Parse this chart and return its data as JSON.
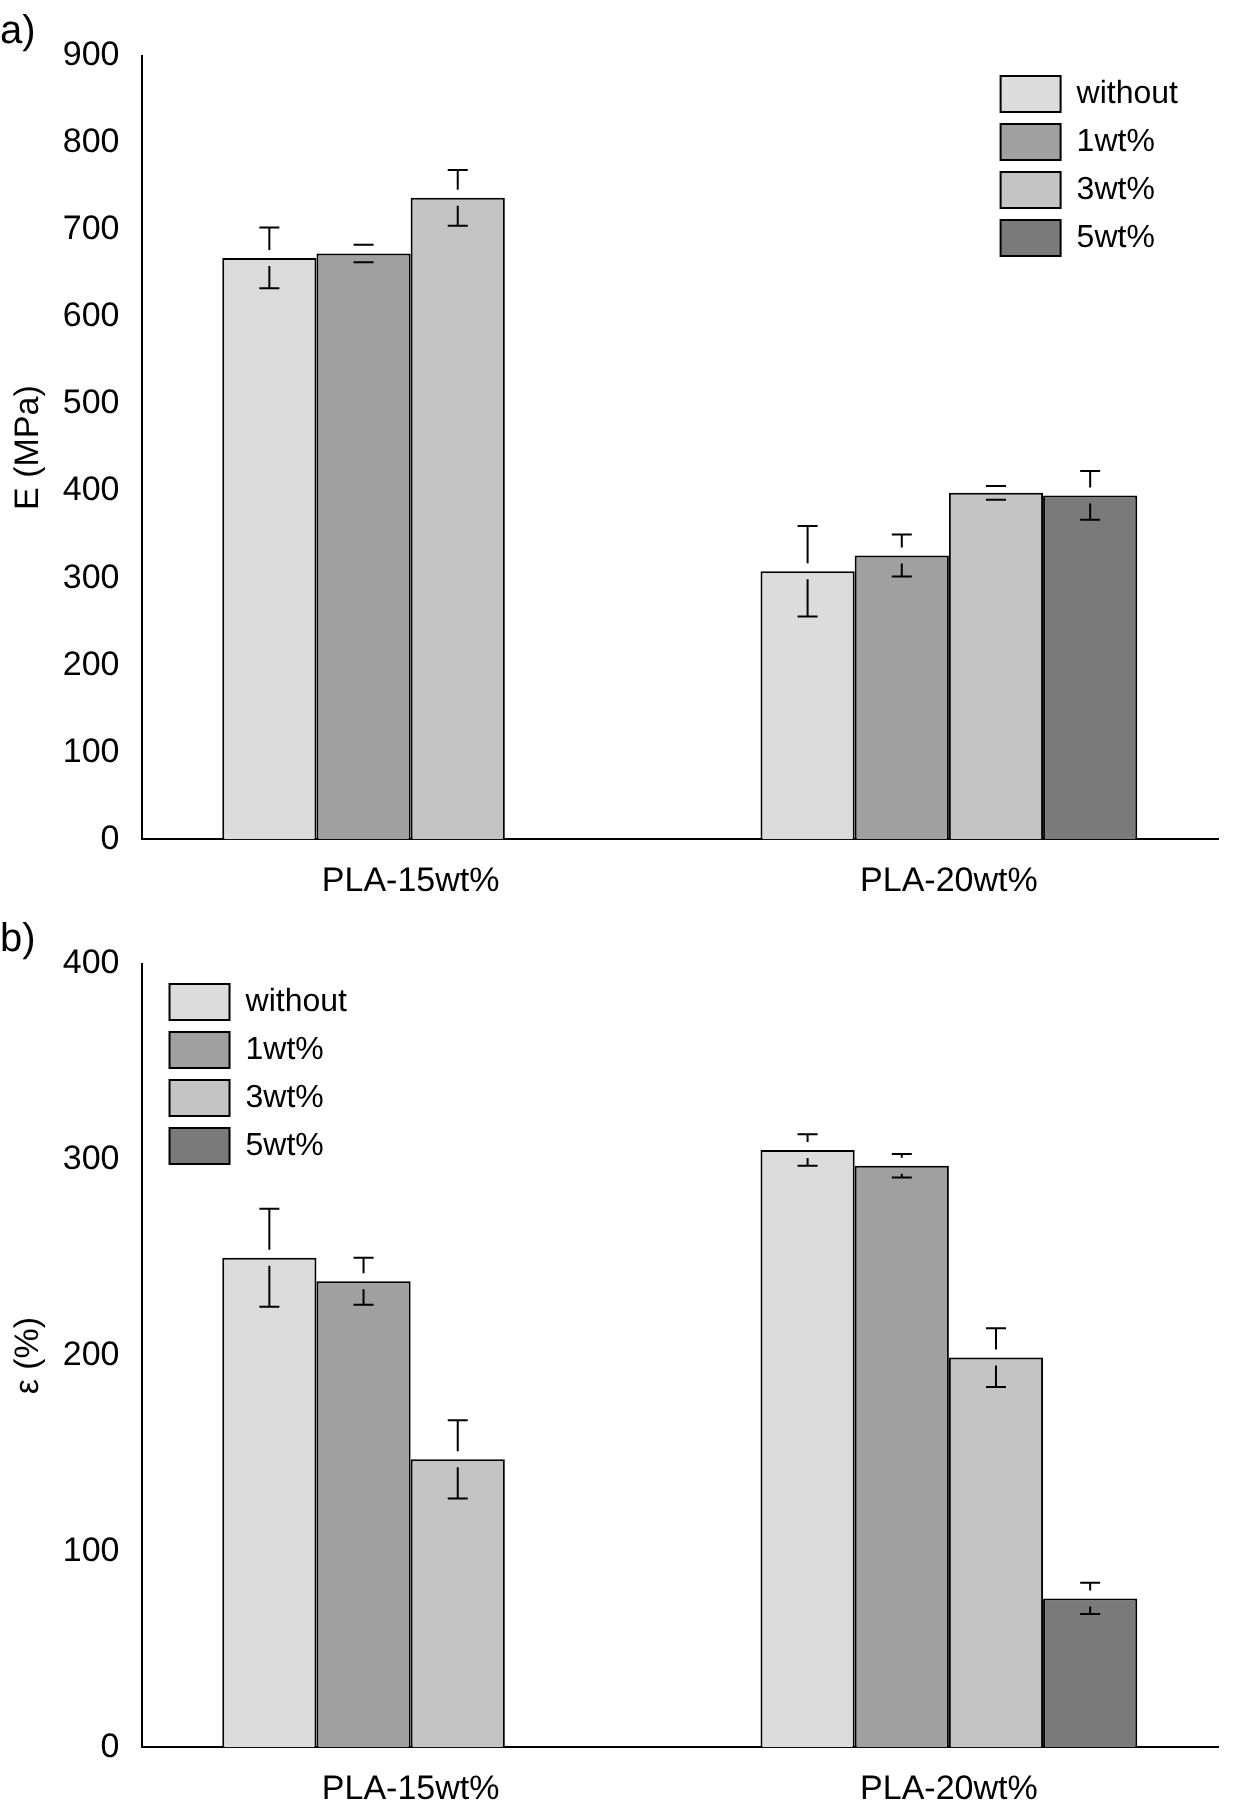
{
  "chart_data": [
    {
      "type": "bar",
      "title": "a)",
      "ylabel": "E (MPa)",
      "categories": [
        "PLA-15wt%",
        "PLA-20wt%"
      ],
      "ylim": [
        0,
        900
      ],
      "yticks": [
        0,
        100,
        200,
        300,
        400,
        500,
        600,
        700,
        800,
        900
      ],
      "legend": "top right",
      "series": [
        {
          "name": "without",
          "color": "#dcdcdc",
          "values": [
            668,
            308
          ],
          "errors": [
            35,
            52
          ]
        },
        {
          "name": "1wt%",
          "color": "#a0a0a0",
          "values": [
            673,
            326
          ],
          "errors": [
            10,
            24
          ]
        },
        {
          "name": "3wt%",
          "color": "#c4c4c4",
          "values": [
            737,
            398
          ],
          "errors": [
            32,
            8
          ]
        },
        {
          "name": "5wt%",
          "color": "#7a7a7a",
          "values": [
            null,
            395
          ],
          "errors": [
            null,
            28
          ]
        }
      ]
    },
    {
      "type": "bar",
      "title": "b)",
      "ylabel": "ε (%)",
      "categories": [
        "PLA-15wt%",
        "PLA-20wt%"
      ],
      "ylim": [
        0,
        400
      ],
      "yticks": [
        0,
        100,
        200,
        300,
        400
      ],
      "legend": "top left",
      "series": [
        {
          "name": "without",
          "color": "#dcdcdc",
          "values": [
            250,
            305
          ],
          "errors": [
            25,
            8
          ]
        },
        {
          "name": "1wt%",
          "color": "#a0a0a0",
          "values": [
            238,
            297
          ],
          "errors": [
            12,
            6
          ]
        },
        {
          "name": "3wt%",
          "color": "#c4c4c4",
          "values": [
            147,
            199
          ],
          "errors": [
            20,
            15
          ]
        },
        {
          "name": "5wt%",
          "color": "#7a7a7a",
          "values": [
            null,
            76
          ],
          "errors": [
            null,
            8
          ]
        }
      ]
    }
  ]
}
